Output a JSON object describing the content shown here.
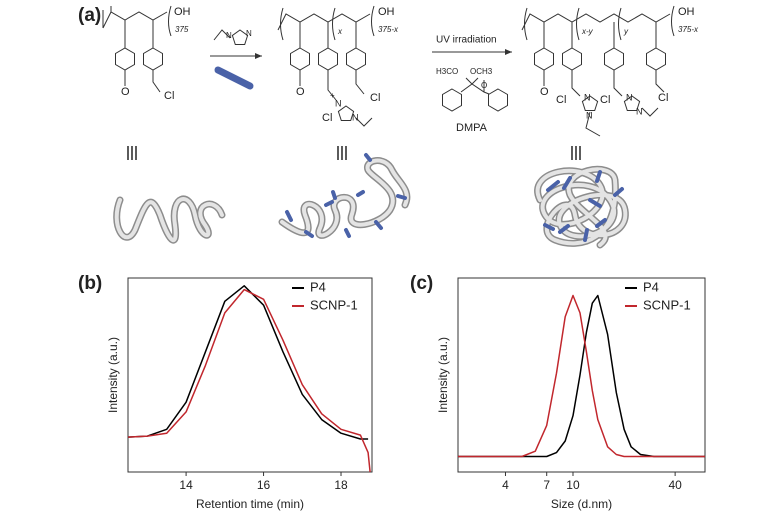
{
  "panel_a": {
    "label": "(a)",
    "texts": [
      "OH",
      "375",
      "O",
      "Cl",
      "N",
      "N",
      "x",
      "375-x",
      "OH",
      "O",
      "Cl",
      "Cl",
      "N",
      "N",
      "+",
      "UV irradiation",
      "H3CO",
      "OCH3",
      "O",
      "DMPA",
      "x-y",
      "y",
      "375-x",
      "OH",
      "O",
      "Cl",
      "Cl",
      "Cl",
      "N",
      "N",
      "N",
      "N"
    ]
  },
  "chart_data": [
    {
      "type": "line",
      "panel_label": "(b)",
      "xlabel": "Retention time (min)",
      "ylabel": "Intensity (a.u.)",
      "x": [
        12.5,
        13,
        13.5,
        14,
        14.5,
        15,
        15.5,
        16,
        16.5,
        17,
        17.5,
        18,
        18.5,
        18.7,
        18.75
      ],
      "series": [
        {
          "name": "P4",
          "color": "#000000",
          "values": [
            0.18,
            0.185,
            0.22,
            0.36,
            0.62,
            0.88,
            0.96,
            0.86,
            0.62,
            0.4,
            0.27,
            0.2,
            0.17,
            0.17,
            null
          ]
        },
        {
          "name": "SCNP-1",
          "color": "#c1272d",
          "values": [
            0.18,
            0.185,
            0.2,
            0.31,
            0.55,
            0.82,
            0.94,
            0.89,
            0.68,
            0.45,
            0.3,
            0.22,
            0.19,
            0.1,
            0
          ]
        }
      ],
      "xlim": [
        12.5,
        18.8
      ],
      "xticks": [
        14,
        16,
        18
      ],
      "ylim": [
        0,
        1
      ],
      "legend": "top-right"
    },
    {
      "type": "line",
      "panel_label": "(c)",
      "xlabel": "Size (d.nm)",
      "ylabel": "Intensity (a.u.)",
      "xscale": "log",
      "x": [
        2.1,
        4,
        5,
        6,
        7,
        8,
        9,
        10,
        11,
        12,
        13,
        14,
        16,
        18,
        20,
        22,
        25,
        30,
        40,
        60
      ],
      "series": [
        {
          "name": "P4",
          "color": "#000000",
          "values": [
            0.08,
            0.08,
            0.08,
            0.08,
            0.08,
            0.1,
            0.16,
            0.29,
            0.5,
            0.72,
            0.87,
            0.91,
            0.71,
            0.41,
            0.22,
            0.13,
            0.09,
            0.08,
            0.08,
            0.08
          ]
        },
        {
          "name": "SCNP-1",
          "color": "#c1272d",
          "values": [
            0.08,
            0.08,
            0.08,
            0.107,
            0.24,
            0.51,
            0.8,
            0.91,
            0.82,
            0.62,
            0.42,
            0.27,
            0.13,
            0.09,
            0.08,
            0.08,
            0.08,
            0.08,
            0.08,
            0.08
          ]
        }
      ],
      "xlim": [
        2.1,
        60
      ],
      "xticks": [
        4,
        7,
        10,
        40
      ],
      "ylim": [
        0,
        1
      ],
      "legend": "top-right"
    }
  ]
}
